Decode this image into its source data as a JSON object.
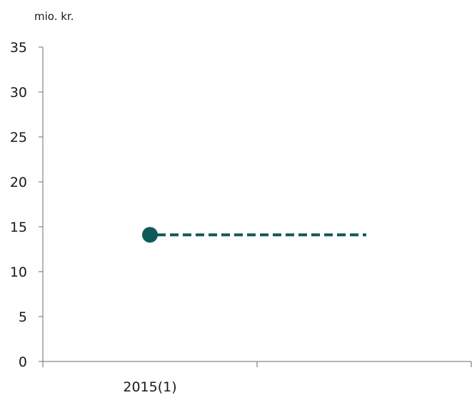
{
  "chart_data": {
    "type": "line",
    "title": "",
    "ylabel": "mio. kr.",
    "xlabel": "",
    "ylim": [
      0,
      35
    ],
    "y_ticks": [
      0,
      5,
      10,
      15,
      20,
      25,
      30,
      35
    ],
    "categories": [
      "2015(1)",
      ""
    ],
    "grid": false,
    "series": [
      {
        "points": [
          {
            "x": "2015(1)",
            "y": 14.1,
            "marker": "circle"
          },
          {
            "x": "",
            "y": 14.1,
            "marker": "none"
          }
        ],
        "line_style": "dashed",
        "color": "#0d5a5a"
      }
    ]
  }
}
